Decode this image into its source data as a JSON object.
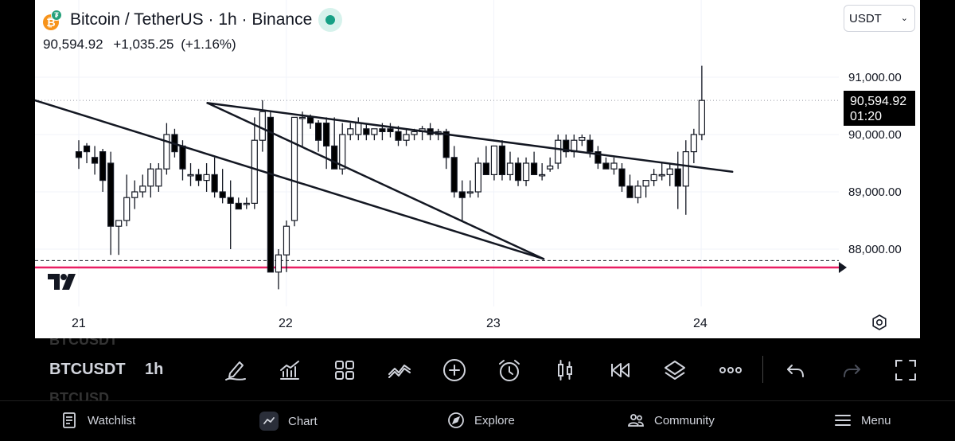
{
  "header": {
    "symbol_title": "Bitcoin / TetherUS · 1h · Binance",
    "icons": [
      "bitcoin-icon",
      "tether-icon",
      "market-open-icon"
    ],
    "last_price": "90,594.92",
    "change": "+1,035.25",
    "change_pct": "(+1.16%)"
  },
  "currency": {
    "selected": "USDT"
  },
  "price_axis": {
    "labels": [
      "91,000.00",
      "90,000.00",
      "89,000.00",
      "88,000.00"
    ],
    "last_price_tag": {
      "price": "90,594.92",
      "countdown": "01:20"
    }
  },
  "time_axis": {
    "labels": [
      "21",
      "22",
      "23",
      "24"
    ]
  },
  "toolbar": {
    "ticker": "BTCUSDT",
    "ticker_ghost_top": "BTCUSDT",
    "ticker_ghost_bottom": "BTCUSD",
    "interval": "1h",
    "tools": [
      "drawing-tools-icon",
      "indicators-icon",
      "layouts-icon",
      "compare-icon",
      "add-icon",
      "alert-icon",
      "candle-style-icon",
      "replay-icon",
      "layers-icon",
      "more-icon",
      "undo-icon",
      "redo-icon",
      "fullscreen-icon"
    ]
  },
  "tabbar": {
    "items": [
      {
        "label": "Watchlist",
        "icon": "watchlist-icon"
      },
      {
        "label": "Chart",
        "icon": "chart-icon"
      },
      {
        "label": "Explore",
        "icon": "compass-icon"
      },
      {
        "label": "Community",
        "icon": "community-icon"
      },
      {
        "label": "Menu",
        "icon": "menu-icon"
      }
    ]
  },
  "colors": {
    "support_line": "#e91e63",
    "candle_up": "#ffffff",
    "candle_down": "#000000"
  },
  "chart_data": {
    "type": "candlestick",
    "symbol": "BTCUSDT",
    "interval": "1h",
    "ylim": [
      87200,
      91400
    ],
    "y_ticks": [
      88000,
      89000,
      90000,
      91000
    ],
    "x_labels": [
      "21",
      "22",
      "23",
      "24"
    ],
    "last_price": 90594.92,
    "support_price": 87680,
    "dashed_level": 87800,
    "trendlines": [
      {
        "from": [
          -1.1,
          91600
        ],
        "to": [
          2.24,
          87830
        ]
      },
      {
        "from": [
          0.62,
          90550
        ],
        "to": [
          2.24,
          87830
        ]
      },
      {
        "from": [
          0.62,
          90550
        ],
        "to": [
          3.15,
          89350
        ]
      }
    ],
    "candles_x_start": 0.0,
    "candles_step_days": 0.0385,
    "candles": [
      [
        89700,
        89900,
        89400,
        89600
      ],
      [
        89800,
        89850,
        89500,
        89700
      ],
      [
        89600,
        89800,
        89300,
        89500
      ],
      [
        89700,
        89750,
        89000,
        89200
      ],
      [
        89500,
        89700,
        87900,
        88400
      ],
      [
        88400,
        88500,
        87900,
        88500
      ],
      [
        88500,
        89300,
        88400,
        88900
      ],
      [
        88900,
        89200,
        88700,
        89000
      ],
      [
        89000,
        89300,
        88900,
        89100
      ],
      [
        89100,
        89500,
        88900,
        89400
      ],
      [
        89100,
        89500,
        89000,
        89400
      ],
      [
        89400,
        90200,
        89300,
        90000
      ],
      [
        90000,
        90100,
        89600,
        89700
      ],
      [
        89800,
        89900,
        89200,
        89400
      ],
      [
        89300,
        89500,
        89100,
        89300
      ],
      [
        89300,
        89400,
        89100,
        89200
      ],
      [
        89200,
        89500,
        89000,
        89300
      ],
      [
        89300,
        89600,
        88900,
        89000
      ],
      [
        89000,
        89400,
        88800,
        88900
      ],
      [
        88900,
        89200,
        88000,
        88800
      ],
      [
        88800,
        88900,
        88700,
        88700
      ],
      [
        88800,
        88900,
        88700,
        88800
      ],
      [
        88800,
        90300,
        88700,
        89900
      ],
      [
        89900,
        90600,
        89700,
        90400
      ],
      [
        90300,
        90400,
        87600,
        87600
      ],
      [
        87600,
        88000,
        87300,
        87900
      ],
      [
        87900,
        88500,
        87600,
        88400
      ],
      [
        88500,
        90300,
        88400,
        90300
      ],
      [
        90300,
        90400,
        89800,
        90300
      ],
      [
        90300,
        90350,
        90100,
        90200
      ],
      [
        90200,
        90250,
        89700,
        89900
      ],
      [
        90200,
        90300,
        89400,
        89800
      ],
      [
        89800,
        90300,
        89400,
        89400
      ],
      [
        89400,
        90200,
        89300,
        90000
      ],
      [
        90000,
        90200,
        89900,
        90100
      ],
      [
        90000,
        90300,
        89900,
        90200
      ],
      [
        90100,
        90200,
        89900,
        90000
      ],
      [
        90000,
        90100,
        89900,
        90100
      ],
      [
        90100,
        90200,
        89900,
        90050
      ],
      [
        90100,
        90200,
        89950,
        90050
      ],
      [
        90050,
        90150,
        89800,
        89900
      ],
      [
        89900,
        90100,
        89800,
        90000
      ],
      [
        90000,
        90100,
        89900,
        90050
      ],
      [
        90050,
        90150,
        89900,
        90100
      ],
      [
        90100,
        90200,
        89900,
        90000
      ],
      [
        90000,
        90100,
        89900,
        90050
      ],
      [
        90050,
        90100,
        89400,
        89600
      ],
      [
        89600,
        89800,
        88900,
        89000
      ],
      [
        89000,
        89200,
        88500,
        88900
      ],
      [
        89000,
        89200,
        88900,
        89000
      ],
      [
        89000,
        89600,
        88900,
        89500
      ],
      [
        89500,
        89800,
        89300,
        89300
      ],
      [
        89300,
        89800,
        89200,
        89800
      ],
      [
        89800,
        89900,
        89200,
        89300
      ],
      [
        89300,
        89700,
        89200,
        89500
      ],
      [
        89500,
        89600,
        89100,
        89200
      ],
      [
        89200,
        89600,
        89100,
        89500
      ],
      [
        89500,
        89700,
        89300,
        89300
      ],
      [
        89300,
        89500,
        89200,
        89300
      ],
      [
        89400,
        89600,
        89350,
        89450
      ],
      [
        89500,
        90000,
        89400,
        89900
      ],
      [
        89900,
        90000,
        89600,
        89700
      ],
      [
        89700,
        90000,
        89600,
        89900
      ],
      [
        89900,
        90000,
        89800,
        89950
      ],
      [
        89900,
        90000,
        89600,
        89700
      ],
      [
        89700,
        89800,
        89400,
        89500
      ],
      [
        89500,
        89600,
        89400,
        89400
      ],
      [
        89400,
        89600,
        89300,
        89500
      ],
      [
        89400,
        89500,
        89000,
        89100
      ],
      [
        89100,
        89300,
        88900,
        88900
      ],
      [
        88900,
        89200,
        88800,
        89100
      ],
      [
        89100,
        89200,
        88900,
        89200
      ],
      [
        89200,
        89400,
        89100,
        89300
      ],
      [
        89300,
        89500,
        89200,
        89300
      ],
      [
        89300,
        89500,
        89100,
        89400
      ],
      [
        89400,
        89700,
        88700,
        89100
      ],
      [
        89100,
        89900,
        88600,
        89700
      ],
      [
        89700,
        90100,
        89500,
        90000
      ],
      [
        90000,
        91200,
        89900,
        90595
      ]
    ]
  }
}
